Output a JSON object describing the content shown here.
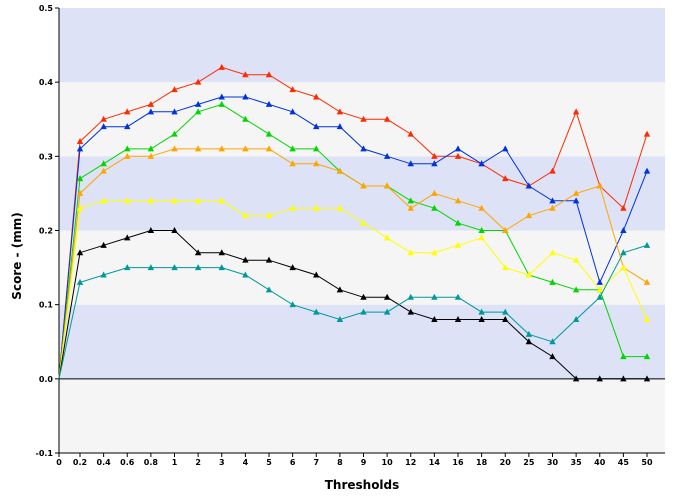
{
  "chart_data": {
    "type": "line",
    "xlabel": "Thresholds",
    "ylabel": "Score - (mm)",
    "ylim": [
      -0.1,
      0.5
    ],
    "yticks": [
      "-0.1",
      "0.0",
      "0.1",
      "0.2",
      "0.3",
      "0.4",
      "0.5"
    ],
    "categories": [
      "0",
      "0.2",
      "0.4",
      "0.6",
      "0.8",
      "1",
      "2",
      "3",
      "4",
      "5",
      "6",
      "7",
      "8",
      "9",
      "10",
      "12",
      "14",
      "16",
      "18",
      "20",
      "25",
      "30",
      "35",
      "40",
      "45",
      "50"
    ],
    "background_bands": true,
    "grid": false,
    "legend": "none",
    "colors": {
      "band_dark": "#dde2f7",
      "band_light": "#f5f5f5",
      "zero_line": "#000000"
    },
    "series": [
      {
        "color": "#ff2a00",
        "values": [
          0.0,
          0.32,
          0.35,
          0.36,
          0.37,
          0.39,
          0.4,
          0.42,
          0.41,
          0.41,
          0.39,
          0.38,
          0.36,
          0.35,
          0.35,
          0.33,
          0.3,
          0.3,
          0.29,
          0.27,
          0.26,
          0.28,
          0.36,
          0.26,
          0.23,
          0.33
        ]
      },
      {
        "color": "#0033dd",
        "values": [
          0.0,
          0.31,
          0.34,
          0.34,
          0.36,
          0.36,
          0.37,
          0.38,
          0.38,
          0.37,
          0.36,
          0.34,
          0.34,
          0.31,
          0.3,
          0.29,
          0.29,
          0.31,
          0.29,
          0.31,
          0.26,
          0.24,
          0.24,
          0.13,
          0.2,
          0.28
        ]
      },
      {
        "color": "#00d600",
        "values": [
          0.0,
          0.27,
          0.29,
          0.31,
          0.31,
          0.33,
          0.36,
          0.37,
          0.35,
          0.33,
          0.31,
          0.31,
          0.28,
          0.26,
          0.26,
          0.24,
          0.23,
          0.21,
          0.2,
          0.2,
          0.14,
          0.13,
          0.12,
          0.12,
          0.03,
          0.03
        ]
      },
      {
        "color": "#ffa500",
        "values": [
          0.0,
          0.25,
          0.28,
          0.3,
          0.3,
          0.31,
          0.31,
          0.31,
          0.31,
          0.31,
          0.29,
          0.29,
          0.28,
          0.26,
          0.26,
          0.23,
          0.25,
          0.24,
          0.23,
          0.2,
          0.22,
          0.23,
          0.25,
          0.26,
          0.15,
          0.13
        ]
      },
      {
        "color": "#ffff00",
        "values": [
          0.0,
          0.23,
          0.24,
          0.24,
          0.24,
          0.24,
          0.24,
          0.24,
          0.22,
          0.22,
          0.23,
          0.23,
          0.23,
          0.21,
          0.19,
          0.17,
          0.17,
          0.18,
          0.19,
          0.15,
          0.14,
          0.17,
          0.16,
          0.12,
          0.15,
          0.08
        ]
      },
      {
        "color": "#000000",
        "values": [
          0.0,
          0.17,
          0.18,
          0.19,
          0.2,
          0.2,
          0.17,
          0.17,
          0.16,
          0.16,
          0.15,
          0.14,
          0.12,
          0.11,
          0.11,
          0.09,
          0.08,
          0.08,
          0.08,
          0.08,
          0.05,
          0.03,
          0.0,
          0.0,
          0.0,
          0.0
        ]
      },
      {
        "color": "#009999",
        "values": [
          0.0,
          0.13,
          0.14,
          0.15,
          0.15,
          0.15,
          0.15,
          0.15,
          0.14,
          0.12,
          0.1,
          0.09,
          0.08,
          0.09,
          0.09,
          0.11,
          0.11,
          0.11,
          0.09,
          0.09,
          0.06,
          0.05,
          0.08,
          0.11,
          0.17,
          0.18
        ]
      }
    ]
  }
}
